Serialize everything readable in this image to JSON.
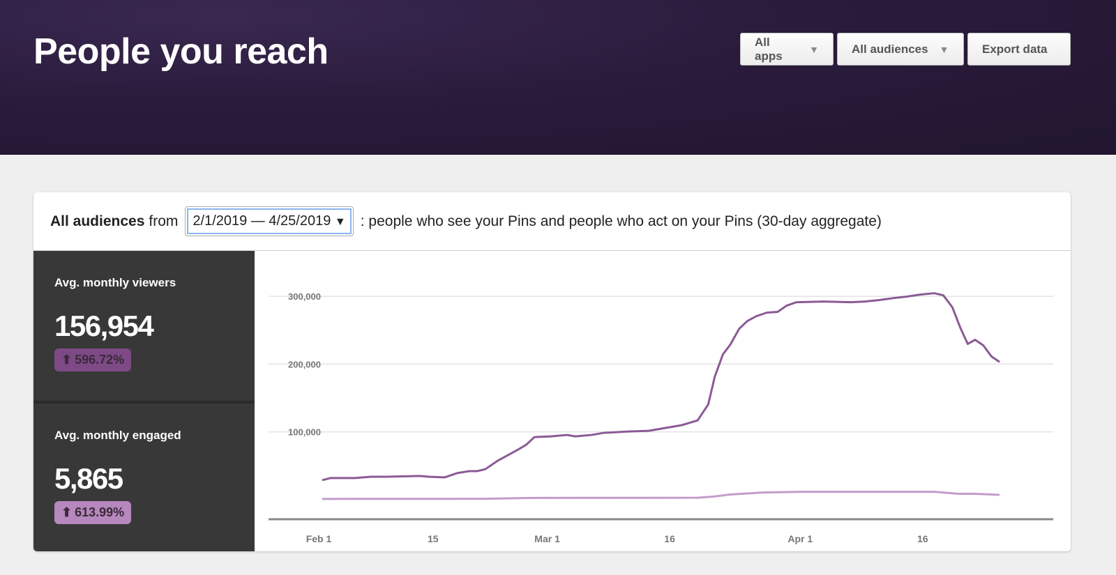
{
  "header": {
    "title": "People you reach",
    "apps_label": "All apps",
    "audiences_label": "All audiences",
    "export_label": "Export data"
  },
  "filter": {
    "audience": "All audiences",
    "from": "from",
    "date_range": "2/1/2019 — 4/25/2019",
    "description": ": people who see your Pins and people who act on your Pins (30-day aggregate)"
  },
  "stats": [
    {
      "label": "Avg. monthly viewers",
      "value": "156,954",
      "change": "596.72%",
      "color": "#7d4a86"
    },
    {
      "label": "Avg. monthly engaged",
      "value": "5,865",
      "change": "613.99%",
      "color": "#b688be"
    }
  ],
  "chart_data": {
    "type": "line",
    "x_unit": "days since Feb 1 2019",
    "xticks": [
      {
        "day": 0,
        "label": "Feb 1"
      },
      {
        "day": 14,
        "label": "15"
      },
      {
        "day": 28,
        "label": "Mar 1"
      },
      {
        "day": 43,
        "label": "16"
      },
      {
        "day": 59,
        "label": "Apr 1"
      },
      {
        "day": 74,
        "label": "16"
      }
    ],
    "yticks": [
      {
        "value": 100000,
        "label": "100,000"
      },
      {
        "value": 200000,
        "label": "200,000"
      },
      {
        "value": 300000,
        "label": "300,000"
      }
    ],
    "xlim": [
      -1,
      89
    ],
    "ylim": [
      -29000,
      330000
    ],
    "series": [
      {
        "name": "Avg. monthly viewers",
        "color": "#8b5a95",
        "points": [
          [
            0,
            28700
          ],
          [
            1,
            31800
          ],
          [
            4,
            31800
          ],
          [
            6,
            33800
          ],
          [
            8,
            33800
          ],
          [
            12,
            34900
          ],
          [
            13,
            33800
          ],
          [
            15,
            32800
          ],
          [
            16.5,
            39000
          ],
          [
            18,
            42000
          ],
          [
            19,
            42000
          ],
          [
            20,
            45000
          ],
          [
            21.5,
            57400
          ],
          [
            24,
            73800
          ],
          [
            25,
            81000
          ],
          [
            26,
            92300
          ],
          [
            28,
            93300
          ],
          [
            30,
            95400
          ],
          [
            31,
            93300
          ],
          [
            33,
            95400
          ],
          [
            34.5,
            98500
          ],
          [
            36,
            99500
          ],
          [
            37.5,
            100500
          ],
          [
            40,
            101500
          ],
          [
            42,
            105600
          ],
          [
            44,
            109700
          ],
          [
            46,
            116900
          ],
          [
            47.3,
            140500
          ],
          [
            48.1,
            181500
          ],
          [
            49.1,
            214400
          ],
          [
            50,
            228700
          ],
          [
            51.1,
            252300
          ],
          [
            52.1,
            263600
          ],
          [
            53.2,
            270800
          ],
          [
            54.5,
            276000
          ],
          [
            55.8,
            277000
          ],
          [
            56.9,
            286200
          ],
          [
            58.1,
            291300
          ],
          [
            61.4,
            292300
          ],
          [
            64.8,
            291300
          ],
          [
            66.5,
            292300
          ],
          [
            68.2,
            294400
          ],
          [
            70,
            297400
          ],
          [
            71.6,
            299500
          ],
          [
            73.3,
            302600
          ],
          [
            75,
            304600
          ],
          [
            76.1,
            301500
          ],
          [
            77.2,
            284100
          ],
          [
            78.2,
            253300
          ],
          [
            79.1,
            229700
          ],
          [
            80,
            235900
          ],
          [
            81,
            227700
          ],
          [
            82,
            211300
          ],
          [
            83,
            203100
          ]
        ]
      },
      {
        "name": "Avg. monthly engaged",
        "color": "#c49ccb",
        "points": [
          [
            0,
            1000
          ],
          [
            20,
            1200
          ],
          [
            26,
            2500
          ],
          [
            46,
            2800
          ],
          [
            48,
            4500
          ],
          [
            50,
            7500
          ],
          [
            54,
            10500
          ],
          [
            59,
            11500
          ],
          [
            75,
            11500
          ],
          [
            78,
            8500
          ],
          [
            80,
            8500
          ],
          [
            83,
            7000
          ]
        ]
      }
    ]
  }
}
